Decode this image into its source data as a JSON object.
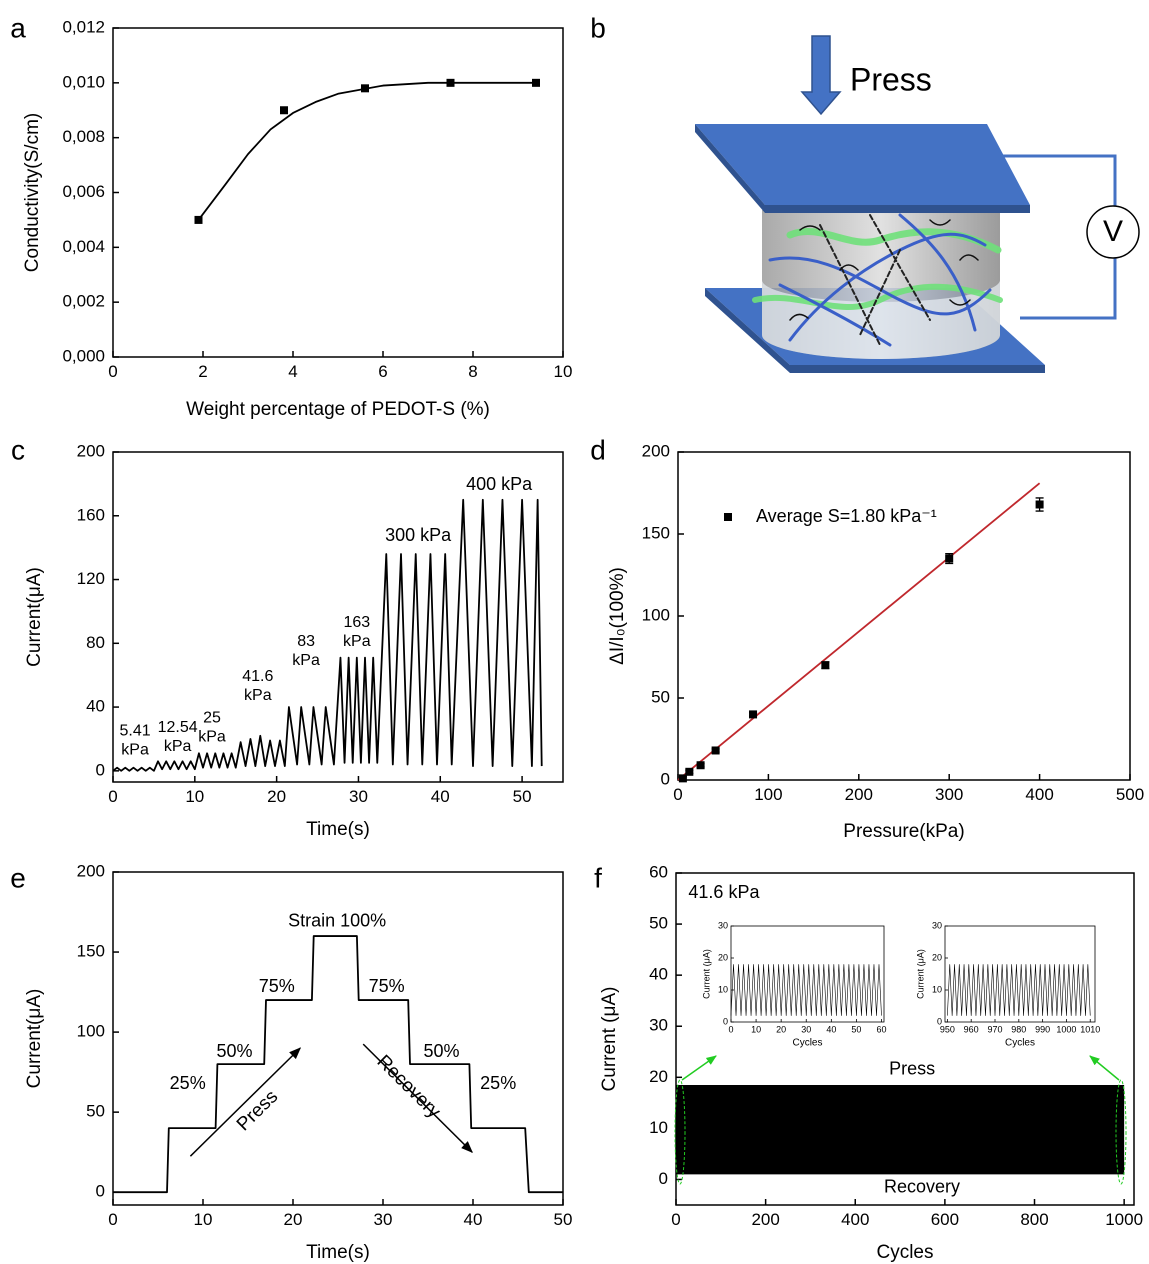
{
  "diagram": {
    "panel": "b",
    "label": "Press",
    "meter": "V"
  },
  "chart_data": [
    {
      "type": "scatter",
      "panel": "a",
      "xlabel": "Weight percentage of PEDOT-S (%)",
      "ylabel": "Conductivity(S/cm)",
      "xlim": [
        0,
        10
      ],
      "xticks": [
        0,
        2,
        4,
        6,
        8,
        10
      ],
      "ylim": [
        0,
        0.012
      ],
      "yticks": [
        {
          "value": 0,
          "label": "0,000"
        },
        {
          "value": 0.002,
          "label": "0,002"
        },
        {
          "value": 0.004,
          "label": "0,004"
        },
        {
          "value": 0.006,
          "label": "0,006"
        },
        {
          "value": 0.008,
          "label": "0,008"
        },
        {
          "value": 0.01,
          "label": "0,010"
        },
        {
          "value": 0.012,
          "label": "0,012"
        }
      ],
      "series": [
        {
          "color": "#000000",
          "x": [
            1.9,
            3.8,
            5.6,
            7.5,
            9.4
          ],
          "values": [
            0.005,
            0.009,
            0.0098,
            0.01,
            0.01
          ]
        }
      ],
      "fit": {
        "color": "#000000",
        "x": [
          1.9,
          2.5,
          3,
          3.5,
          4,
          4.5,
          5,
          6,
          7,
          8,
          9.4
        ],
        "values": [
          0.005,
          0.0063,
          0.0074,
          0.0083,
          0.0089,
          0.0093,
          0.0096,
          0.0099,
          0.01,
          0.01,
          0.01
        ]
      }
    },
    {
      "type": "line",
      "panel": "c",
      "xlabel": "Time(s)",
      "ylabel": "Current(μA)",
      "color": "#000000",
      "xlim": [
        0,
        55
      ],
      "xticks": [
        0,
        10,
        20,
        30,
        40,
        50
      ],
      "ylim": [
        -7,
        200
      ],
      "yticks": [
        0,
        40,
        80,
        120,
        160,
        200
      ],
      "x": [
        0,
        0.5,
        1,
        1.5,
        2,
        2.5,
        3,
        3.5,
        4,
        4.5,
        5,
        5.5,
        6,
        6.5,
        7,
        7.5,
        8,
        8.5,
        9,
        9.5,
        10,
        10.5,
        11,
        11.5,
        12,
        12.5,
        13,
        13.5,
        14,
        14.5,
        15,
        15.6,
        16.2,
        16.8,
        17.4,
        18,
        18.6,
        19.2,
        19.8,
        20.4,
        21,
        21.5,
        22.5,
        23,
        24,
        24.5,
        25.5,
        26,
        27,
        27.8,
        28.3,
        28.8,
        29.3,
        29.8,
        30.3,
        30.8,
        31.3,
        31.8,
        32.3,
        33.4,
        34.2,
        35.2,
        36,
        37,
        37.8,
        38.8,
        39.6,
        40.6,
        41.4,
        42.8,
        44,
        45.2,
        46.4,
        47.6,
        48.8,
        50,
        51.2,
        51.9,
        52.4
      ],
      "values": [
        0,
        2,
        0,
        2,
        0,
        2,
        0,
        2,
        0,
        2,
        0,
        6,
        1,
        6,
        1,
        6,
        1,
        6,
        1,
        6,
        1,
        11,
        2,
        11,
        2,
        11,
        2,
        11,
        2,
        11,
        2,
        18,
        3,
        20,
        3,
        22,
        3,
        19,
        3,
        19,
        3,
        40,
        4,
        40,
        4,
        40,
        4,
        40,
        4,
        71,
        5,
        71,
        5,
        71,
        5,
        71,
        5,
        71,
        5,
        136,
        4,
        136,
        4,
        136,
        4,
        136,
        4,
        136,
        4,
        170,
        3,
        170,
        3,
        170,
        3,
        170,
        3,
        170,
        3
      ],
      "annotations": [
        {
          "text": [
            "5.41",
            "kPa"
          ],
          "x": 2.7,
          "y": 19
        },
        {
          "text": [
            "12.54",
            "kPa"
          ],
          "x": 7.9,
          "y": 21
        },
        {
          "text": [
            "25",
            "kPa"
          ],
          "x": 12.1,
          "y": 27
        },
        {
          "text": [
            "41.6",
            "kPa"
          ],
          "x": 17.7,
          "y": 53
        },
        {
          "text": [
            "83",
            "kPa"
          ],
          "x": 23.6,
          "y": 75
        },
        {
          "text": [
            "163",
            "kPa"
          ],
          "x": 29.8,
          "y": 87
        },
        {
          "text": "300 kPa",
          "x": 37.3,
          "y": 147
        },
        {
          "text": "400 kPa",
          "x": 47.2,
          "y": 179
        }
      ]
    },
    {
      "type": "scatter",
      "panel": "d",
      "xlabel": "Pressure(kPa)",
      "ylabel": "ΔI/I₀(100%)",
      "legend": "upper left",
      "xlim": [
        0,
        500
      ],
      "xticks": [
        0,
        100,
        200,
        300,
        400,
        500
      ],
      "ylim": [
        0,
        200
      ],
      "yticks": [
        0,
        50,
        100,
        150,
        200
      ],
      "series": [
        {
          "name": "Average S=1.80 kPa⁻¹",
          "color": "#000000",
          "x": [
            5.41,
            12.54,
            25,
            41.6,
            83,
            163,
            300,
            400
          ],
          "values": [
            1,
            5,
            9,
            18,
            40,
            70,
            135,
            168
          ],
          "errors": [
            1,
            1,
            1,
            1,
            1,
            2,
            3,
            4
          ]
        }
      ],
      "fit": {
        "color": "#c0282d",
        "x": [
          0,
          400
        ],
        "values": [
          0,
          181
        ]
      }
    },
    {
      "type": "line",
      "panel": "e",
      "xlabel": "Time(s)",
      "ylabel": "Current(μA)",
      "color": "#000000",
      "xlim": [
        0,
        50
      ],
      "xticks": [
        0,
        10,
        20,
        30,
        40,
        50
      ],
      "ylim": [
        -8,
        200
      ],
      "yticks": [
        0,
        50,
        100,
        150,
        200
      ],
      "x": [
        0,
        6,
        6.2,
        11.4,
        11.6,
        16.8,
        17,
        22.1,
        22.3,
        27.1,
        27.3,
        32.8,
        33,
        39.6,
        39.8,
        45.8,
        46.2,
        50
      ],
      "values": [
        0,
        0,
        40,
        40,
        80,
        80,
        120,
        120,
        160,
        160,
        120,
        120,
        80,
        80,
        40,
        40,
        0,
        0
      ],
      "annotations": [
        {
          "text": "25%",
          "x": 8.3,
          "y": 67.5
        },
        {
          "text": "50%",
          "x": 13.5,
          "y": 87.5
        },
        {
          "text": "75%",
          "x": 18.2,
          "y": 128
        },
        {
          "text": "Strain 100%",
          "x": 24.9,
          "y": 169
        },
        {
          "text": "75%",
          "x": 30.4,
          "y": 128
        },
        {
          "text": "50%",
          "x": 36.5,
          "y": 87.5
        },
        {
          "text": "25%",
          "x": 42.8,
          "y": 67.5
        }
      ],
      "arrows": [
        {
          "text": "Press",
          "x1": 8.6,
          "y1": 22.5,
          "x2": 20.8,
          "y2": 90,
          "tx": 16.1,
          "ty": 50.6
        },
        {
          "text": "Recovery",
          "x1": 27.8,
          "y1": 92.5,
          "x2": 39.9,
          "y2": 25,
          "tx": 32.8,
          "ty": 65.6
        }
      ]
    },
    {
      "type": "band",
      "panel": "f",
      "xlabel": "Cycles",
      "ylabel": "Current (μA)",
      "color": "#000000",
      "xlim": [
        0,
        1022
      ],
      "xticks": [
        0,
        200,
        400,
        600,
        800,
        1000
      ],
      "ylim": [
        -5,
        60
      ],
      "yticks": [
        0,
        10,
        20,
        30,
        40,
        50,
        60
      ],
      "x": [
        0,
        1000
      ],
      "high": [
        18.5,
        18.5
      ],
      "low": [
        1,
        1
      ],
      "annotations": [
        {
          "text": "41.6 kPa",
          "x": 107,
          "y": 56
        },
        {
          "text": "Press",
          "x": 527,
          "y": 21.5
        },
        {
          "text": "Recovery",
          "x": 549,
          "y": -1.6
        }
      ]
    },
    {
      "type": "line",
      "inset": true,
      "xlabel": "Cycles",
      "ylabel": "Current (μA)",
      "color": "#000000",
      "xlim": [
        0,
        61
      ],
      "xticks": [
        0,
        10,
        20,
        30,
        40,
        50,
        60
      ],
      "ylim": [
        0,
        30
      ],
      "yticks": [
        0,
        10,
        20,
        30
      ],
      "x": [
        0,
        1,
        2,
        3,
        4,
        5,
        6,
        7,
        8,
        9,
        10,
        11,
        12,
        13,
        14,
        15,
        16,
        17,
        18,
        19,
        20,
        21,
        22,
        23,
        24,
        25,
        26,
        27,
        28,
        29,
        30,
        31,
        32,
        33,
        34,
        35,
        36,
        37,
        38,
        39,
        40,
        41,
        42,
        43,
        44,
        45,
        46,
        47,
        48,
        49,
        50,
        51,
        52,
        53,
        54,
        55,
        56,
        57,
        58,
        59,
        60
      ],
      "values": [
        2,
        18,
        2,
        18,
        2,
        18,
        2,
        18,
        2,
        18,
        2,
        18,
        2,
        18,
        2,
        18,
        2,
        18,
        2,
        18,
        2,
        18,
        2,
        18,
        2,
        18,
        2,
        18,
        2,
        18,
        2,
        18,
        2,
        18,
        2,
        18,
        2,
        18,
        2,
        18,
        2,
        18,
        2,
        18,
        2,
        18,
        2,
        18,
        2,
        18,
        2,
        18,
        2,
        18,
        2,
        18,
        2,
        18,
        2,
        18,
        2
      ]
    },
    {
      "type": "line",
      "inset": true,
      "xlabel": "Cycles",
      "ylabel": "Current (μA)",
      "color": "#000000",
      "xlim": [
        949,
        1012
      ],
      "xticks": [
        950,
        960,
        970,
        980,
        990,
        1000,
        1010
      ],
      "ylim": [
        0,
        30
      ],
      "yticks": [
        0,
        10,
        20,
        30
      ],
      "x": [
        950,
        951,
        952,
        953,
        954,
        955,
        956,
        957,
        958,
        959,
        960,
        961,
        962,
        963,
        964,
        965,
        966,
        967,
        968,
        969,
        970,
        971,
        972,
        973,
        974,
        975,
        976,
        977,
        978,
        979,
        980,
        981,
        982,
        983,
        984,
        985,
        986,
        987,
        988,
        989,
        990,
        991,
        992,
        993,
        994,
        995,
        996,
        997,
        998,
        999,
        1000,
        1001,
        1002,
        1003,
        1004,
        1005,
        1006,
        1007,
        1008,
        1009,
        1010
      ],
      "values": [
        2,
        18,
        2,
        18,
        2,
        18,
        2,
        18,
        2,
        18,
        2,
        18,
        2,
        18,
        2,
        18,
        2,
        18,
        2,
        18,
        2,
        18,
        2,
        18,
        2,
        18,
        2,
        18,
        2,
        18,
        2,
        18,
        2,
        18,
        2,
        18,
        2,
        18,
        2,
        18,
        2,
        18,
        2,
        18,
        2,
        18,
        2,
        18,
        2,
        18,
        2,
        18,
        2,
        18,
        2,
        18,
        2,
        18,
        2,
        18,
        2
      ]
    }
  ]
}
